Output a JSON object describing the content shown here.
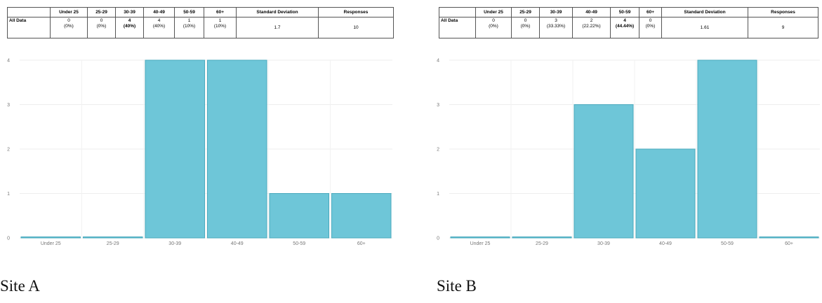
{
  "sites": [
    {
      "label": "Site A",
      "table": {
        "headers": [
          "",
          "Under 25",
          "25-29",
          "30-39",
          "40-49",
          "50-59",
          "60+",
          "Standard Deviation",
          "Responses"
        ],
        "row_label": "All Data",
        "counts": [
          "0",
          "0",
          "4",
          "4",
          "1",
          "1"
        ],
        "percents": [
          "(0%)",
          "(0%)",
          "(40%)",
          "(40%)",
          "(10%)",
          "(10%)"
        ],
        "std_dev": "1.7",
        "responses": "10"
      }
    },
    {
      "label": "Site B",
      "table": {
        "headers": [
          "",
          "Under 25",
          "25-29",
          "30-39",
          "40-49",
          "50-59",
          "60+",
          "Standard Deviation",
          "Responses"
        ],
        "row_label": "All Data",
        "counts": [
          "0",
          "0",
          "3",
          "2",
          "4",
          "0"
        ],
        "percents": [
          "(0%)",
          "(0%)",
          "(33.33%)",
          "(22.22%)",
          "(44.44%)",
          "(0%)"
        ],
        "std_dev": "1.61",
        "responses": "9"
      }
    }
  ],
  "chart_data": [
    {
      "type": "bar",
      "categories": [
        "Under 25",
        "25-29",
        "30-39",
        "40-49",
        "50-59",
        "60+"
      ],
      "values": [
        0,
        0,
        4,
        4,
        1,
        1
      ],
      "y_ticks": [
        "0",
        "1",
        "2",
        "3",
        "4"
      ],
      "ylim": [
        0,
        4
      ],
      "grid": true,
      "bar_color": "#6ec6d8",
      "bar_edge_color": "#4aa9bd"
    },
    {
      "type": "bar",
      "categories": [
        "Under 25",
        "25-29",
        "30-39",
        "40-49",
        "50-59",
        "60+"
      ],
      "values": [
        0,
        0,
        3,
        2,
        4,
        0
      ],
      "y_ticks": [
        "0",
        "1",
        "2",
        "3",
        "4"
      ],
      "ylim": [
        0,
        4
      ],
      "grid": true,
      "bar_color": "#6ec6d8",
      "bar_edge_color": "#4aa9bd"
    }
  ]
}
